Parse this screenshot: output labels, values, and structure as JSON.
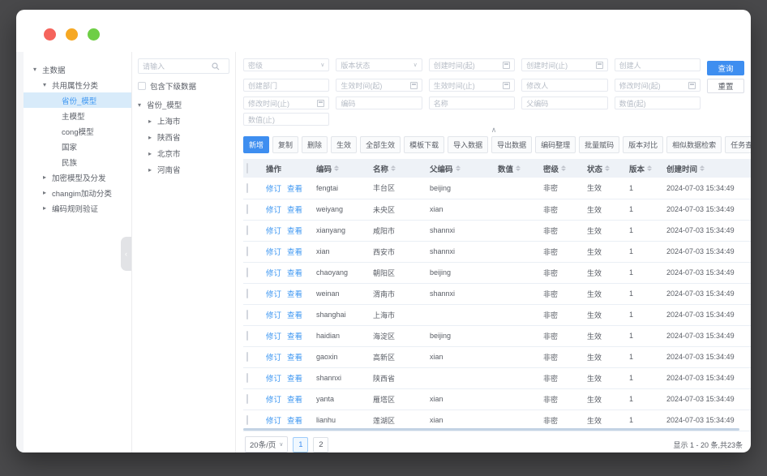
{
  "colors": {
    "background": "#49494b",
    "primary": "#3e8ef0",
    "link": "#3e97f2",
    "selected_bg": "#d8ebfa",
    "table_header_bg": "#eef2f7",
    "scrollbar": "#c3d3e4",
    "traffic_lights": [
      "#f5645c",
      "#f6a823",
      "#6ece45"
    ]
  },
  "nav_tree": {
    "items": [
      {
        "label": "主数据",
        "level": 0,
        "expanded": true
      },
      {
        "label": "共用属性分类",
        "level": 1,
        "expanded": true
      },
      {
        "label": "省份_模型",
        "level": 2,
        "selected": true
      },
      {
        "label": "主模型",
        "level": 2
      },
      {
        "label": "cong模型",
        "level": 2
      },
      {
        "label": "国家",
        "level": 2
      },
      {
        "label": "民族",
        "level": 2
      },
      {
        "label": "加密模型及分发",
        "level": 1,
        "expanded": false
      },
      {
        "label": "changim加动分类",
        "level": 1,
        "expanded": false
      },
      {
        "label": "编码规则验证",
        "level": 1,
        "expanded": false
      }
    ]
  },
  "tree_panel": {
    "search_placeholder": "请输入",
    "checkbox_label": "包含下级数据",
    "root_label": "省份_模型",
    "children": [
      "上海市",
      "陕西省",
      "北京市",
      "河南省"
    ]
  },
  "filters": {
    "rows": [
      [
        {
          "label": "密级",
          "type": "select"
        },
        {
          "label": "版本状态",
          "type": "select"
        },
        {
          "label": "创建时间(起)",
          "type": "date"
        },
        {
          "label": "创建时间(止)",
          "type": "date"
        },
        {
          "label": "创建人",
          "type": "text"
        }
      ],
      [
        {
          "label": "创建部门",
          "type": "text"
        },
        {
          "label": "生效时间(起)",
          "type": "date"
        },
        {
          "label": "生效时间(止)",
          "type": "date"
        },
        {
          "label": "修改人",
          "type": "text"
        },
        {
          "label": "修改时间(起)",
          "type": "date"
        }
      ],
      [
        {
          "label": "修改时间(止)",
          "type": "date"
        },
        {
          "label": "编码",
          "type": "text"
        },
        {
          "label": "名称",
          "type": "text"
        },
        {
          "label": "父编码",
          "type": "text"
        },
        {
          "label": "数值(起)",
          "type": "text"
        }
      ],
      [
        {
          "label": "数值(止)",
          "type": "text"
        }
      ]
    ],
    "search_button": "查询",
    "reset_button": "重置"
  },
  "toolbar": {
    "buttons": [
      {
        "label": "新增",
        "primary": true
      },
      {
        "label": "复制"
      },
      {
        "label": "删除"
      },
      {
        "label": "生效"
      },
      {
        "label": "全部生效"
      },
      {
        "label": "模板下载"
      },
      {
        "label": "导入数据"
      },
      {
        "label": "导出数据"
      },
      {
        "label": "编码整理"
      },
      {
        "label": "批量赋码"
      },
      {
        "label": "版本对比"
      },
      {
        "label": "相似数据检索"
      },
      {
        "label": "任务查看"
      }
    ]
  },
  "table": {
    "row_actions": [
      "修订",
      "查看"
    ],
    "columns": [
      {
        "label": "操作",
        "sortable": false
      },
      {
        "label": "编码",
        "sortable": true
      },
      {
        "label": "名称",
        "sortable": true
      },
      {
        "label": "父编码",
        "sortable": true
      },
      {
        "label": "数值",
        "sortable": true
      },
      {
        "label": "密级",
        "sortable": true
      },
      {
        "label": "状态",
        "sortable": true
      },
      {
        "label": "版本",
        "sortable": true
      },
      {
        "label": "创建时间",
        "sortable": true
      }
    ],
    "rows": [
      {
        "code": "fengtai",
        "name": "丰台区",
        "parent_code": "beijing",
        "value": "",
        "secret_level": "非密",
        "status": "生效",
        "version": "1",
        "created_at": "2024-07-03 15:34:49"
      },
      {
        "code": "weiyang",
        "name": "未央区",
        "parent_code": "xian",
        "value": "",
        "secret_level": "非密",
        "status": "生效",
        "version": "1",
        "created_at": "2024-07-03 15:34:49"
      },
      {
        "code": "xianyang",
        "name": "咸阳市",
        "parent_code": "shannxi",
        "value": "",
        "secret_level": "非密",
        "status": "生效",
        "version": "1",
        "created_at": "2024-07-03 15:34:49"
      },
      {
        "code": "xian",
        "name": "西安市",
        "parent_code": "shannxi",
        "value": "",
        "secret_level": "非密",
        "status": "生效",
        "version": "1",
        "created_at": "2024-07-03 15:34:49"
      },
      {
        "code": "chaoyang",
        "name": "朝阳区",
        "parent_code": "beijing",
        "value": "",
        "secret_level": "非密",
        "status": "生效",
        "version": "1",
        "created_at": "2024-07-03 15:34:49"
      },
      {
        "code": "weinan",
        "name": "渭南市",
        "parent_code": "shannxi",
        "value": "",
        "secret_level": "非密",
        "status": "生效",
        "version": "1",
        "created_at": "2024-07-03 15:34:49"
      },
      {
        "code": "shanghai",
        "name": "上海市",
        "parent_code": "",
        "value": "",
        "secret_level": "非密",
        "status": "生效",
        "version": "1",
        "created_at": "2024-07-03 15:34:49"
      },
      {
        "code": "haidian",
        "name": "海淀区",
        "parent_code": "beijing",
        "value": "",
        "secret_level": "非密",
        "status": "生效",
        "version": "1",
        "created_at": "2024-07-03 15:34:49"
      },
      {
        "code": "gaoxin",
        "name": "高新区",
        "parent_code": "xian",
        "value": "",
        "secret_level": "非密",
        "status": "生效",
        "version": "1",
        "created_at": "2024-07-03 15:34:49"
      },
      {
        "code": "shannxi",
        "name": "陕西省",
        "parent_code": "",
        "value": "",
        "secret_level": "非密",
        "status": "生效",
        "version": "1",
        "created_at": "2024-07-03 15:34:49"
      },
      {
        "code": "yanta",
        "name": "雁塔区",
        "parent_code": "xian",
        "value": "",
        "secret_level": "非密",
        "status": "生效",
        "version": "1",
        "created_at": "2024-07-03 15:34:49"
      },
      {
        "code": "lianhu",
        "name": "莲湖区",
        "parent_code": "xian",
        "value": "",
        "secret_level": "非密",
        "status": "生效",
        "version": "1",
        "created_at": "2024-07-03 15:34:49"
      }
    ]
  },
  "pagination": {
    "page_size": "20条/页",
    "pages": [
      "1",
      "2"
    ],
    "active_page": "1",
    "summary": "显示 1 - 20 条,共23条"
  }
}
